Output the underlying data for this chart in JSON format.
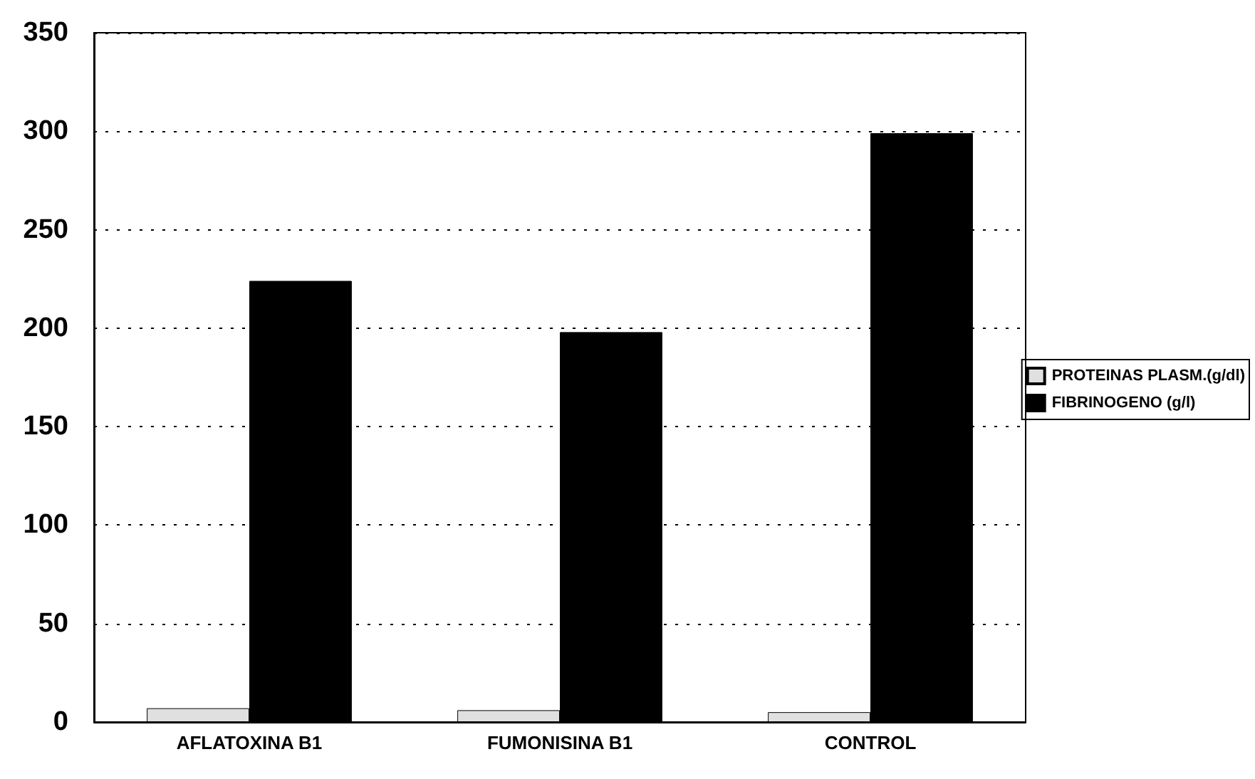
{
  "chart_data": {
    "type": "bar",
    "categories": [
      "AFLATOXINA B1",
      "FUMONISINA B1",
      "CONTROL"
    ],
    "series": [
      {
        "name": "PROTEINAS PLASM.(g/dl)",
        "color": "#e0e0e0",
        "values": [
          7,
          6,
          5
        ]
      },
      {
        "name": "FIBRINOGENO (g/l)",
        "color": "#000000",
        "values": [
          224,
          198,
          299
        ]
      }
    ],
    "ylim": [
      0,
      350
    ],
    "yticks": [
      0,
      50,
      100,
      150,
      200,
      250,
      300,
      350
    ],
    "grid": "y",
    "legend": "right"
  }
}
